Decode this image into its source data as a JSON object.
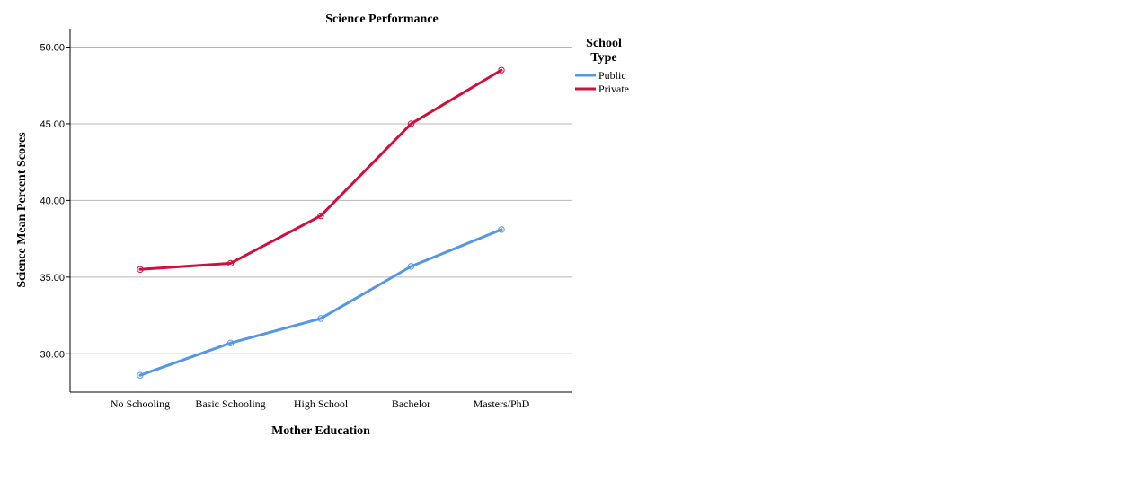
{
  "chart_data": {
    "type": "line",
    "title": "Science Performance",
    "xlabel": "Mother Education",
    "ylabel": "Science Mean Percent Scores",
    "categories": [
      "No Schooling",
      "Basic Schooling",
      "High School",
      "Bachelor",
      "Masters/PhD"
    ],
    "ylim": [
      27.5,
      51.2
    ],
    "yticks": [
      "30.00",
      "35.00",
      "40.00",
      "45.00",
      "50.00"
    ],
    "grid": "horizontal",
    "legend": {
      "title_line1": "School",
      "title_line2": "Type",
      "placement": "right"
    },
    "series": [
      {
        "name": "Public",
        "color": "#5596e6",
        "values": [
          28.6,
          30.7,
          32.3,
          35.7,
          38.1
        ]
      },
      {
        "name": "Private",
        "color": "#d00f3b",
        "values": [
          35.5,
          35.9,
          39.0,
          45.0,
          48.5
        ]
      }
    ]
  }
}
